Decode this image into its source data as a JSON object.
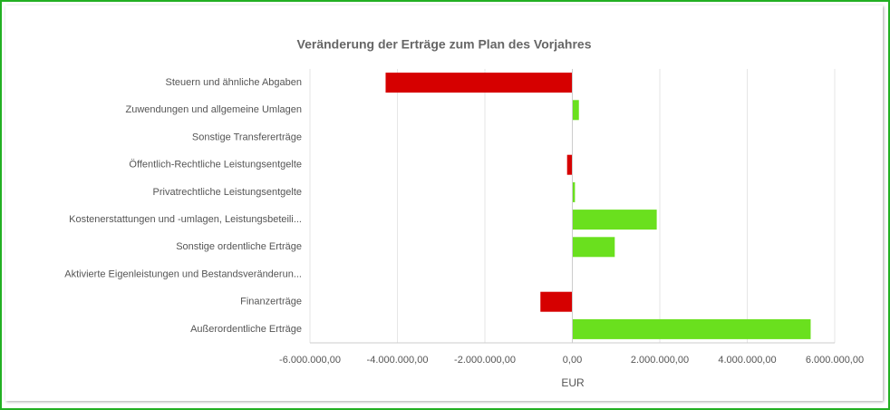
{
  "chart_data": {
    "type": "barh",
    "title": "Veränderung der Erträge zum Plan des Vorjahres",
    "x_label": "EUR",
    "categories": [
      "Steuern und ähnliche Abgaben",
      "Zuwendungen und allgemeine Umlagen",
      "Sonstige Transfererträge",
      "Öffentlich-Rechtliche Leistungsentgelte",
      "Privatrechtliche Leistungsentgelte",
      "Kostenerstattungen und -umlagen, Leistungsbeteili...",
      "Sonstige ordentliche Erträge",
      "Aktivierte Eigenleistungen und Bestandsveränderun...",
      "Finanzerträge",
      "Außerordentliche Erträge"
    ],
    "values": [
      -4270000,
      150000,
      0,
      -120000,
      60000,
      1930000,
      970000,
      0,
      -730000,
      5450000
    ],
    "colors": [
      "#d60000",
      "#6ae01e",
      "#6ae01e",
      "#d60000",
      "#6ae01e",
      "#6ae01e",
      "#6ae01e",
      "#6ae01e",
      "#d60000",
      "#6ae01e"
    ],
    "xlim": [
      -6000000,
      6000000
    ],
    "xticks": [
      {
        "value": -6000000,
        "label": "-6.000.000,00"
      },
      {
        "value": -4000000,
        "label": "-4.000.000,00"
      },
      {
        "value": -2000000,
        "label": "-2.000.000,00"
      },
      {
        "value": 0,
        "label": "0,00"
      },
      {
        "value": 2000000,
        "label": "2.000.000,00"
      },
      {
        "value": 4000000,
        "label": "4.000.000,00"
      },
      {
        "value": 6000000,
        "label": "6.000.000,00"
      }
    ],
    "grid": true
  }
}
